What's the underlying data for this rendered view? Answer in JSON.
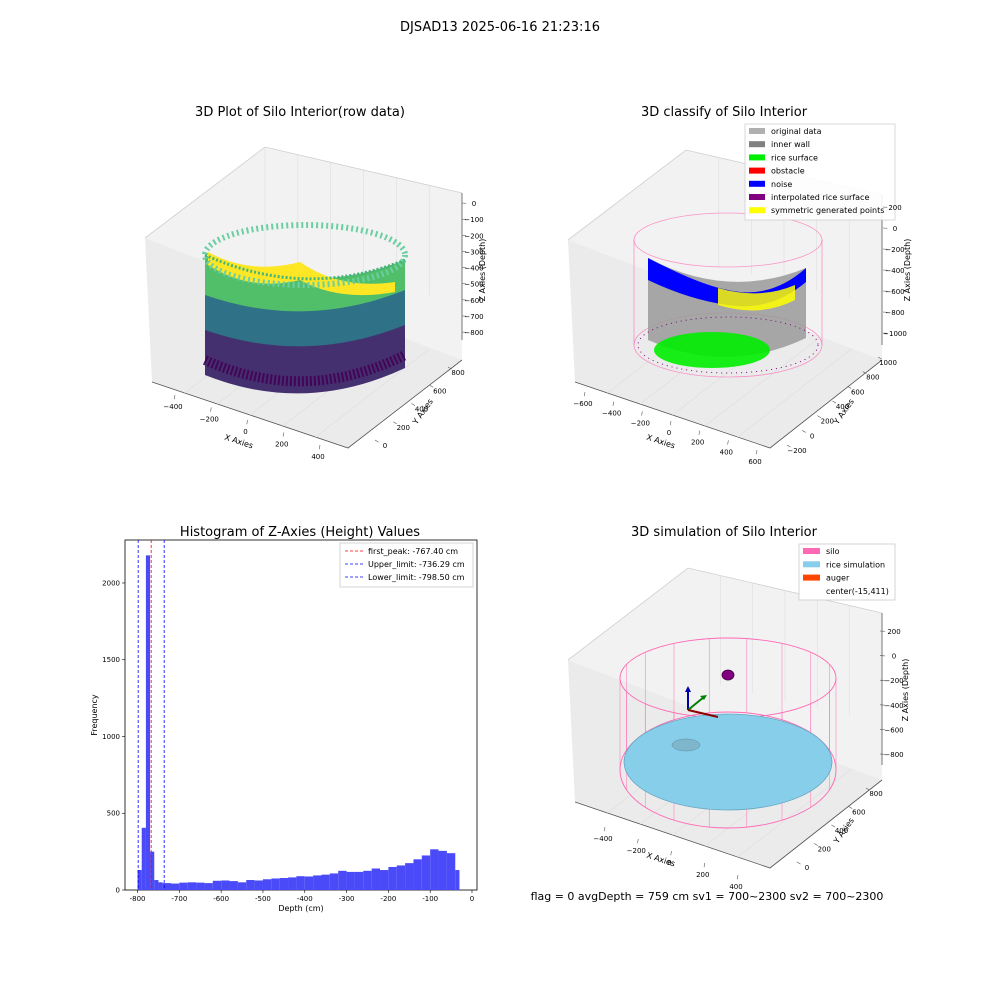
{
  "figure": {
    "title": "DJSAD13 2025-06-16 21:23:16",
    "status_text": "flag = 0     avgDepth = 759 cm  sv1 = 700~2300  sv2 = 700~2300"
  },
  "colors": {
    "original_data": "#b0b0b0",
    "inner_wall": "#808080",
    "rice_surface": "#00ee00",
    "obstacle": "#ff0000",
    "noise": "#0000ff",
    "interpolated_rice_surface": "#800080",
    "symmetric_generated_points": "#ffff00",
    "silo": "#ff69b4",
    "rice_simulation": "#87ceeb",
    "auger": "#ff4500",
    "hist_bar": "#4a4af8",
    "first_peak_line": "#ff0000",
    "limit_line": "#0000ff"
  },
  "plots": {
    "raw": {
      "title": "3D Plot of Silo Interior(row data)",
      "xlabel": "X Axies",
      "ylabel": "Y Axies",
      "zlabel": "Z Axies (Depth)",
      "xticks": [
        "−400",
        "−200",
        "0",
        "200",
        "400"
      ],
      "yticks": [
        "0",
        "200",
        "400",
        "600",
        "800"
      ],
      "zticks": [
        "0",
        "−100",
        "−200",
        "−300",
        "−400",
        "−500",
        "−600",
        "−700",
        "−800"
      ]
    },
    "classify": {
      "title": "3D classify of Silo Interior",
      "xlabel": "X Axies",
      "ylabel": "Y Axies",
      "zlabel": "Z Axies (Depth)",
      "xticks": [
        "−600",
        "−400",
        "−200",
        "0",
        "200",
        "400",
        "600"
      ],
      "yticks": [
        "−200",
        "0",
        "200",
        "400",
        "600",
        "800",
        "1000"
      ],
      "zticks": [
        "200",
        "0",
        "−200",
        "−400",
        "−600",
        "−800",
        "−1000"
      ],
      "legend": [
        {
          "label": "original data",
          "color": "#b0b0b0"
        },
        {
          "label": "inner wall",
          "color": "#808080"
        },
        {
          "label": "rice surface",
          "color": "#00ee00"
        },
        {
          "label": "obstacle",
          "color": "#ff0000"
        },
        {
          "label": "noise",
          "color": "#0000ff"
        },
        {
          "label": "interpolated rice surface",
          "color": "#800080"
        },
        {
          "label": "symmetric generated points",
          "color": "#ffff00"
        }
      ]
    },
    "simulation": {
      "title": "3D simulation of Silo Interior",
      "xlabel": "X Axies",
      "ylabel": "Y Axies",
      "zlabel": "Z Axies (Depth)",
      "xticks": [
        "−400",
        "−200",
        "0",
        "200",
        "400"
      ],
      "yticks": [
        "0",
        "200",
        "400",
        "600",
        "800"
      ],
      "zticks": [
        "200",
        "0",
        "−200",
        "−400",
        "−600",
        "−800"
      ],
      "legend": [
        {
          "label": "silo",
          "color": "#ff69b4"
        },
        {
          "label": "rice simulation",
          "color": "#87ceeb"
        },
        {
          "label": "auger",
          "color": "#ff4500"
        },
        {
          "label": "center(-15,411)",
          "color": ""
        }
      ]
    }
  },
  "chart_data": {
    "type": "bar",
    "title": "Histogram of Z-Axies (Height) Values",
    "xlabel": "Depth (cm)",
    "ylabel": "Frequency",
    "xlim": [
      -830,
      12
    ],
    "ylim": [
      0,
      2280
    ],
    "xticks": [
      -800,
      -700,
      -600,
      -500,
      -400,
      -300,
      -200,
      -100,
      0
    ],
    "yticks": [
      0,
      500,
      1000,
      1500,
      2000
    ],
    "grid": false,
    "legend_position": "top-right",
    "bins": [
      {
        "x0": -800,
        "x1": -790,
        "count": 130
      },
      {
        "x0": -790,
        "x1": -780,
        "count": 405
      },
      {
        "x0": -780,
        "x1": -770,
        "count": 2180
      },
      {
        "x0": -770,
        "x1": -760,
        "count": 250
      },
      {
        "x0": -760,
        "x1": -750,
        "count": 65
      },
      {
        "x0": -750,
        "x1": -740,
        "count": 50
      },
      {
        "x0": -740,
        "x1": -720,
        "count": 45
      },
      {
        "x0": -720,
        "x1": -700,
        "count": 42
      },
      {
        "x0": -700,
        "x1": -680,
        "count": 48
      },
      {
        "x0": -680,
        "x1": -660,
        "count": 50
      },
      {
        "x0": -660,
        "x1": -640,
        "count": 48
      },
      {
        "x0": -640,
        "x1": -620,
        "count": 45
      },
      {
        "x0": -620,
        "x1": -600,
        "count": 60
      },
      {
        "x0": -600,
        "x1": -580,
        "count": 62
      },
      {
        "x0": -580,
        "x1": -560,
        "count": 58
      },
      {
        "x0": -560,
        "x1": -540,
        "count": 50
      },
      {
        "x0": -540,
        "x1": -520,
        "count": 65
      },
      {
        "x0": -520,
        "x1": -500,
        "count": 62
      },
      {
        "x0": -500,
        "x1": -480,
        "count": 70
      },
      {
        "x0": -480,
        "x1": -460,
        "count": 75
      },
      {
        "x0": -460,
        "x1": -440,
        "count": 78
      },
      {
        "x0": -440,
        "x1": -420,
        "count": 82
      },
      {
        "x0": -420,
        "x1": -400,
        "count": 90
      },
      {
        "x0": -400,
        "x1": -380,
        "count": 88
      },
      {
        "x0": -380,
        "x1": -360,
        "count": 95
      },
      {
        "x0": -360,
        "x1": -340,
        "count": 100
      },
      {
        "x0": -340,
        "x1": -320,
        "count": 108
      },
      {
        "x0": -320,
        "x1": -300,
        "count": 125
      },
      {
        "x0": -300,
        "x1": -280,
        "count": 118
      },
      {
        "x0": -280,
        "x1": -260,
        "count": 118
      },
      {
        "x0": -260,
        "x1": -240,
        "count": 125
      },
      {
        "x0": -240,
        "x1": -220,
        "count": 140
      },
      {
        "x0": -220,
        "x1": -200,
        "count": 130
      },
      {
        "x0": -200,
        "x1": -180,
        "count": 150
      },
      {
        "x0": -180,
        "x1": -160,
        "count": 160
      },
      {
        "x0": -160,
        "x1": -140,
        "count": 175
      },
      {
        "x0": -140,
        "x1": -120,
        "count": 200
      },
      {
        "x0": -120,
        "x1": -100,
        "count": 225
      },
      {
        "x0": -100,
        "x1": -80,
        "count": 265
      },
      {
        "x0": -80,
        "x1": -60,
        "count": 255
      },
      {
        "x0": -60,
        "x1": -40,
        "count": 240
      },
      {
        "x0": -40,
        "x1": -30,
        "count": 130
      }
    ],
    "vlines": [
      {
        "x": -767.4,
        "label": "first_peak: -767.40 cm",
        "color": "#ff0000"
      },
      {
        "x": -736.29,
        "label": "Upper_limit: -736.29 cm",
        "color": "#0000ff"
      },
      {
        "x": -798.5,
        "label": "Lower_limit: -798.50 cm",
        "color": "#0000ff"
      }
    ]
  }
}
